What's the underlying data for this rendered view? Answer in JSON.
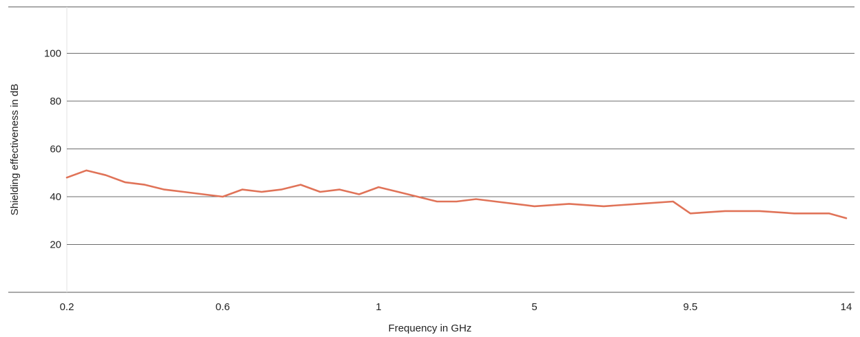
{
  "chart_data": {
    "type": "line",
    "title": "",
    "xlabel": "Frequency in GHz",
    "ylabel": "Shielding effectiveness in dB",
    "x_scale": "piecewise categorical (ticks evenly spaced)",
    "x_ticks": [
      "0.2",
      "0.6",
      "1",
      "5",
      "9.5",
      "14"
    ],
    "y_ticks": [
      "20",
      "40",
      "60",
      "80",
      "100"
    ],
    "ylim": [
      0,
      120
    ],
    "grid": true,
    "legend": "none",
    "colors": {
      "series": "#e07358",
      "grid": "#6b6b6b"
    },
    "series": [
      {
        "x": [
          0.2,
          0.25,
          0.3,
          0.35,
          0.4,
          0.45,
          0.5,
          0.55,
          0.6,
          0.65,
          0.7,
          0.75,
          0.8,
          0.85,
          0.9,
          0.95,
          1,
          1.5,
          2,
          2.5,
          3,
          3.5,
          4,
          4.5,
          5,
          6,
          7,
          8,
          9,
          9.5,
          10.5,
          11.5,
          12.5,
          13.5,
          14
        ],
        "y": [
          48,
          51,
          49,
          46,
          45,
          43,
          42,
          41,
          40,
          43,
          42,
          43,
          45,
          42,
          43,
          41,
          44,
          42,
          40,
          38,
          38,
          39,
          38,
          37,
          36,
          37,
          36,
          37,
          38,
          33,
          34,
          34,
          33,
          33,
          31
        ]
      }
    ]
  }
}
